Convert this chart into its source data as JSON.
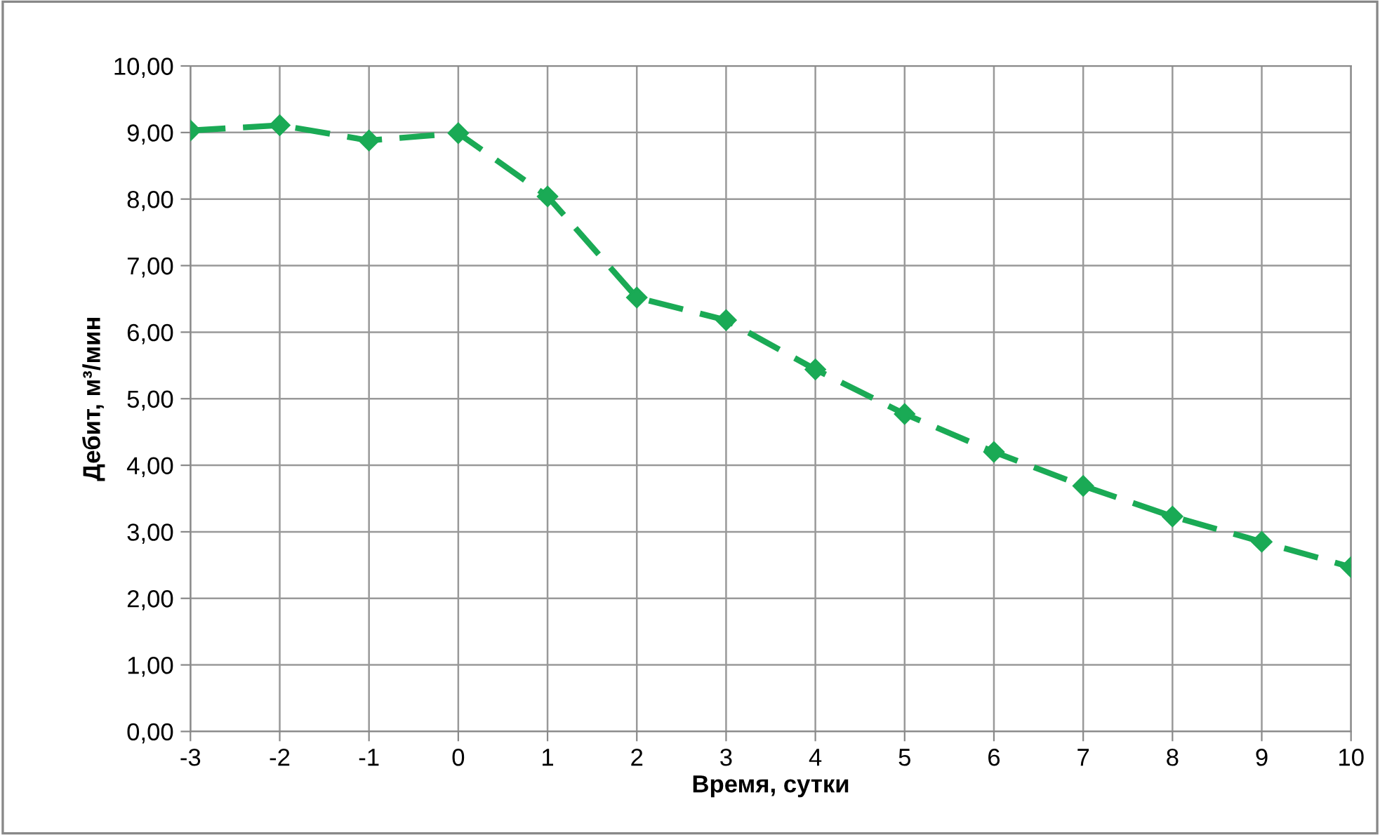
{
  "chart_data": {
    "type": "line",
    "xlabel": "Время, сутки",
    "ylabel": "Дебит, м³/мин",
    "x": [
      -3,
      -2,
      -1,
      0,
      1,
      2,
      3,
      4,
      5,
      6,
      7,
      8,
      9,
      10
    ],
    "series": [
      {
        "color": "#1aaa55",
        "values": [
          9.03,
          9.11,
          8.88,
          8.99,
          8.04,
          6.52,
          6.18,
          5.44,
          4.77,
          4.2,
          3.69,
          3.23,
          2.85,
          2.47
        ]
      }
    ],
    "xlim": [
      -3,
      10
    ],
    "xticks": [
      -3,
      -2,
      -1,
      0,
      1,
      2,
      3,
      4,
      5,
      6,
      7,
      8,
      9,
      10
    ],
    "ylim": [
      0,
      10
    ],
    "yticks": [
      {
        "value": 0,
        "label": "0,00"
      },
      {
        "value": 1,
        "label": "1,00"
      },
      {
        "value": 2,
        "label": "2,00"
      },
      {
        "value": 3,
        "label": "3,00"
      },
      {
        "value": 4,
        "label": "4,00"
      },
      {
        "value": 5,
        "label": "5,00"
      },
      {
        "value": 6,
        "label": "6,00"
      },
      {
        "value": 7,
        "label": "7,00"
      },
      {
        "value": 8,
        "label": "8,00"
      },
      {
        "value": 9,
        "label": "9,00"
      },
      {
        "value": 10,
        "label": "10,00"
      }
    ],
    "grid": true,
    "marker": "diamond",
    "line_style": "dashed"
  }
}
